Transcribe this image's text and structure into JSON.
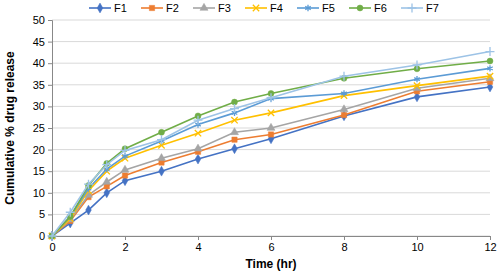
{
  "chart_data": {
    "type": "line",
    "x_label": "Time (hr)",
    "y_label": "Cumulative % drug release",
    "x": [
      0,
      0.5,
      1,
      1.5,
      2,
      3,
      4,
      5,
      6,
      8,
      10,
      12
    ],
    "series": [
      {
        "name": "F1",
        "color": "#4472c4",
        "marker": "diamond",
        "values": [
          0,
          3,
          6,
          10,
          12.8,
          15,
          17.8,
          20.2,
          22.5,
          27.8,
          32.2,
          34.5
        ]
      },
      {
        "name": "F2",
        "color": "#ed7d31",
        "marker": "square",
        "values": [
          0,
          3.5,
          9,
          11.5,
          14,
          17,
          19.5,
          22.3,
          23.5,
          28,
          33.5,
          35.7
        ]
      },
      {
        "name": "F3",
        "color": "#a5a5a5",
        "marker": "triangle",
        "values": [
          0,
          3.8,
          9.5,
          12.5,
          15.3,
          18,
          20.2,
          24,
          25,
          29.3,
          34.2,
          36.5
        ]
      },
      {
        "name": "F4",
        "color": "#ffc000",
        "marker": "x",
        "values": [
          0,
          4,
          10.5,
          15,
          18,
          21,
          23.8,
          26.8,
          28.5,
          32.5,
          34.8,
          37
        ]
      },
      {
        "name": "F5",
        "color": "#5b9bd5",
        "marker": "star",
        "values": [
          0,
          4.5,
          11,
          15.5,
          18.5,
          22,
          25.8,
          28.5,
          31.8,
          33,
          36.3,
          38.8
        ]
      },
      {
        "name": "F6",
        "color": "#70ad47",
        "marker": "circle",
        "values": [
          0,
          4.5,
          11.7,
          16.8,
          20.2,
          24,
          27.8,
          31,
          33,
          36.5,
          38.7,
          40.5
        ]
      },
      {
        "name": "F7",
        "color": "#9dc3e6",
        "marker": "plus",
        "values": [
          0,
          5.5,
          12,
          16.5,
          19.8,
          22.3,
          26.8,
          29.5,
          32,
          37,
          39.6,
          42.7
        ]
      }
    ],
    "xlim": [
      0,
      12
    ],
    "xticks": [
      0,
      2,
      4,
      6,
      8,
      10,
      12
    ],
    "ylim": [
      0,
      50
    ],
    "yticks": [
      0,
      5,
      10,
      15,
      20,
      25,
      30,
      35,
      40,
      45,
      50
    ],
    "grid": true,
    "legend": "top"
  }
}
